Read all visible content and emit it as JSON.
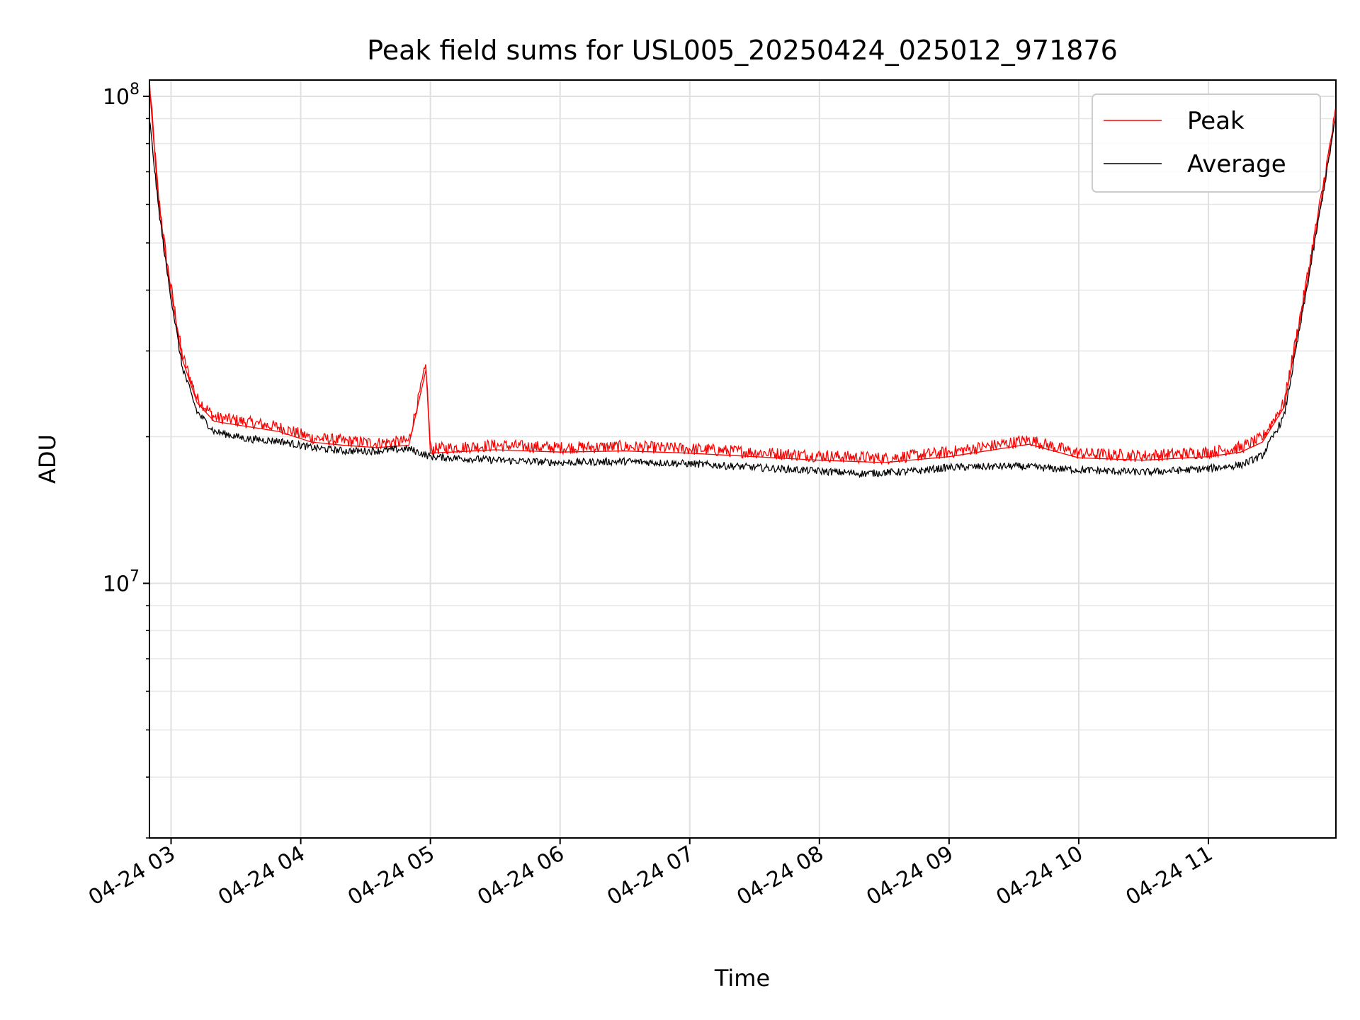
{
  "chart_data": {
    "type": "line",
    "title": "Peak field sums for USL005_20250424_025012_971876",
    "xlabel": "Time",
    "ylabel": "ADU",
    "yscale": "log",
    "ylim": [
      3000000,
      108000000
    ],
    "xlim": [
      "2025-04-24 02:50",
      "2025-04-24 11:59"
    ],
    "grid": true,
    "legend_position": "top-right",
    "x_ticks": [
      {
        "label": "04-24 03",
        "time": "2025-04-24 03:00"
      },
      {
        "label": "04-24 04",
        "time": "2025-04-24 04:00"
      },
      {
        "label": "04-24 05",
        "time": "2025-04-24 05:00"
      },
      {
        "label": "04-24 06",
        "time": "2025-04-24 06:00"
      },
      {
        "label": "04-24 07",
        "time": "2025-04-24 07:00"
      },
      {
        "label": "04-24 08",
        "time": "2025-04-24 08:00"
      },
      {
        "label": "04-24 09",
        "time": "2025-04-24 09:00"
      },
      {
        "label": "04-24 10",
        "time": "2025-04-24 10:00"
      },
      {
        "label": "04-24 11",
        "time": "2025-04-24 11:00"
      }
    ],
    "y_ticks": [
      {
        "base": "10",
        "exp": "7",
        "value": 10000000
      },
      {
        "base": "10",
        "exp": "8",
        "value": 100000000
      }
    ],
    "series": [
      {
        "name": "Peak",
        "color": "#ff0000",
        "points": [
          [
            "2025-04-24 02:50",
            105000000
          ],
          [
            "2025-04-24 02:54",
            62000000
          ],
          [
            "2025-04-24 02:58",
            45000000
          ],
          [
            "2025-04-24 03:05",
            29000000
          ],
          [
            "2025-04-24 03:12",
            23500000
          ],
          [
            "2025-04-24 03:20",
            21500000
          ],
          [
            "2025-04-24 03:35",
            21000000
          ],
          [
            "2025-04-24 03:50",
            20500000
          ],
          [
            "2025-04-24 04:05",
            19500000
          ],
          [
            "2025-04-24 04:20",
            19200000
          ],
          [
            "2025-04-24 04:35",
            19000000
          ],
          [
            "2025-04-24 04:50",
            19200000
          ],
          [
            "2025-04-24 04:58",
            27500000
          ],
          [
            "2025-04-24 05:00",
            18500000
          ],
          [
            "2025-04-24 05:30",
            18800000
          ],
          [
            "2025-04-24 06:00",
            18600000
          ],
          [
            "2025-04-24 06:30",
            18700000
          ],
          [
            "2025-04-24 07:00",
            18500000
          ],
          [
            "2025-04-24 07:30",
            18200000
          ],
          [
            "2025-04-24 08:00",
            17900000
          ],
          [
            "2025-04-24 08:30",
            17700000
          ],
          [
            "2025-04-24 09:00",
            18200000
          ],
          [
            "2025-04-24 09:37",
            19300000
          ],
          [
            "2025-04-24 10:00",
            18100000
          ],
          [
            "2025-04-24 10:30",
            17900000
          ],
          [
            "2025-04-24 11:00",
            18200000
          ],
          [
            "2025-04-24 11:15",
            18600000
          ],
          [
            "2025-04-24 11:25",
            19500000
          ],
          [
            "2025-04-24 11:35",
            23000000
          ],
          [
            "2025-04-24 11:45",
            40000000
          ],
          [
            "2025-04-24 11:55",
            72000000
          ],
          [
            "2025-04-24 11:59",
            92000000
          ]
        ]
      },
      {
        "name": "Average",
        "color": "#000000",
        "points": [
          [
            "2025-04-24 02:50",
            90000000
          ],
          [
            "2025-04-24 02:54",
            60000000
          ],
          [
            "2025-04-24 02:58",
            44000000
          ],
          [
            "2025-04-24 03:05",
            28000000
          ],
          [
            "2025-04-24 03:12",
            22500000
          ],
          [
            "2025-04-24 03:20",
            20500000
          ],
          [
            "2025-04-24 03:35",
            19800000
          ],
          [
            "2025-04-24 03:50",
            19600000
          ],
          [
            "2025-04-24 04:05",
            19000000
          ],
          [
            "2025-04-24 04:20",
            18700000
          ],
          [
            "2025-04-24 04:35",
            18700000
          ],
          [
            "2025-04-24 04:50",
            18900000
          ],
          [
            "2025-04-24 05:00",
            18200000
          ],
          [
            "2025-04-24 05:30",
            17900000
          ],
          [
            "2025-04-24 06:00",
            17700000
          ],
          [
            "2025-04-24 06:30",
            17800000
          ],
          [
            "2025-04-24 07:00",
            17600000
          ],
          [
            "2025-04-24 07:30",
            17300000
          ],
          [
            "2025-04-24 08:00",
            17000000
          ],
          [
            "2025-04-24 08:20",
            16800000
          ],
          [
            "2025-04-24 08:45",
            17000000
          ],
          [
            "2025-04-24 09:00",
            17300000
          ],
          [
            "2025-04-24 09:30",
            17400000
          ],
          [
            "2025-04-24 10:00",
            17100000
          ],
          [
            "2025-04-24 10:30",
            16900000
          ],
          [
            "2025-04-24 11:00",
            17200000
          ],
          [
            "2025-04-24 11:15",
            17500000
          ],
          [
            "2025-04-24 11:25",
            18300000
          ],
          [
            "2025-04-24 11:35",
            22000000
          ],
          [
            "2025-04-24 11:45",
            39000000
          ],
          [
            "2025-04-24 11:55",
            71000000
          ],
          [
            "2025-04-24 11:59",
            91000000
          ]
        ]
      }
    ]
  }
}
